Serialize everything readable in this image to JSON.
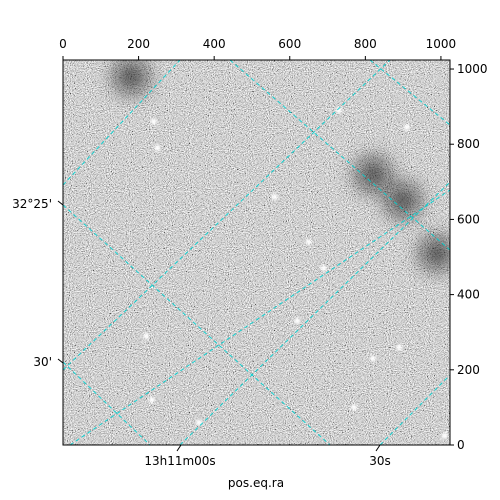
{
  "chart_data": {
    "type": "heatmap",
    "colormap": "grayscale",
    "grid": true,
    "grid_color": "#00d0d0",
    "x_pixel_axis": {
      "ticks": [
        0,
        200,
        400,
        600,
        800,
        1000
      ],
      "range": [
        0,
        1024
      ]
    },
    "y_pixel_axis": {
      "ticks": [
        0,
        200,
        400,
        600,
        800,
        1000
      ],
      "range": [
        0,
        1024
      ]
    },
    "ra_axis": {
      "title": "pos.eq.ra",
      "ticks": [
        "13h11m00s",
        "30s"
      ]
    },
    "dec_axis": {
      "ticks": [
        "32°25'",
        "30'"
      ]
    },
    "sources": [
      {
        "x": 240,
        "y": 860
      },
      {
        "x": 250,
        "y": 790
      },
      {
        "x": 730,
        "y": 890
      },
      {
        "x": 560,
        "y": 660
      },
      {
        "x": 650,
        "y": 540
      },
      {
        "x": 690,
        "y": 470
      },
      {
        "x": 620,
        "y": 330
      },
      {
        "x": 220,
        "y": 290
      },
      {
        "x": 235,
        "y": 120
      },
      {
        "x": 1010,
        "y": 25
      },
      {
        "x": 910,
        "y": 845
      },
      {
        "x": 770,
        "y": 100
      },
      {
        "x": 890,
        "y": 260
      },
      {
        "x": 820,
        "y": 230
      },
      {
        "x": 360,
        "y": 60
      }
    ],
    "dark_regions": [
      {
        "x": 990,
        "y": 510
      },
      {
        "x": 820,
        "y": 720
      },
      {
        "x": 180,
        "y": 980
      },
      {
        "x": 900,
        "y": 650
      }
    ]
  }
}
